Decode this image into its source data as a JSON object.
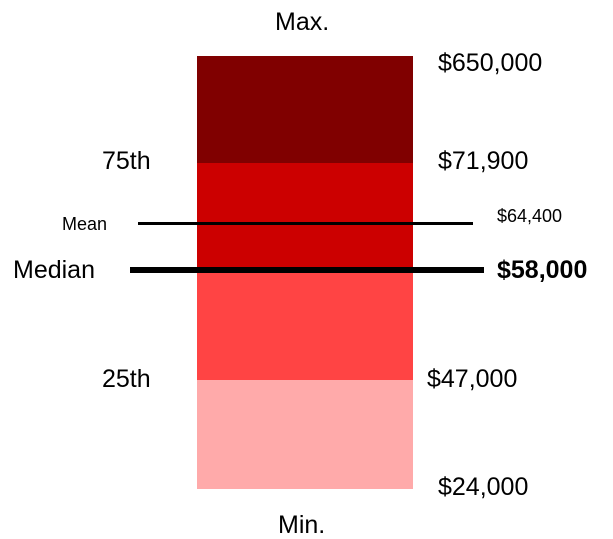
{
  "chart_data": {
    "type": "box-summary",
    "title": "",
    "top_label": "Max.",
    "bottom_label": "Min.",
    "quantiles": [
      {
        "name": "Max.",
        "value": 650000,
        "value_label": "$650,000"
      },
      {
        "name": "75th",
        "value": 71900,
        "value_label": "$71,900"
      },
      {
        "name": "Median",
        "value": 58000,
        "value_label": "$58,000"
      },
      {
        "name": "25th",
        "value": 47000,
        "value_label": "$47,000"
      },
      {
        "name": "Min.",
        "value": 24000,
        "value_label": "$24,000"
      }
    ],
    "mean": {
      "name": "Mean",
      "value": 64400,
      "value_label": "$64,400"
    },
    "segments": [
      {
        "from": "75th",
        "to": "Max.",
        "color": "#800000"
      },
      {
        "from": "Median",
        "to": "75th",
        "color": "#cc0000"
      },
      {
        "from": "25th",
        "to": "Median",
        "color": "#ff4444"
      },
      {
        "from": "Min.",
        "to": "25th",
        "color": "#ffaaaa"
      }
    ]
  }
}
